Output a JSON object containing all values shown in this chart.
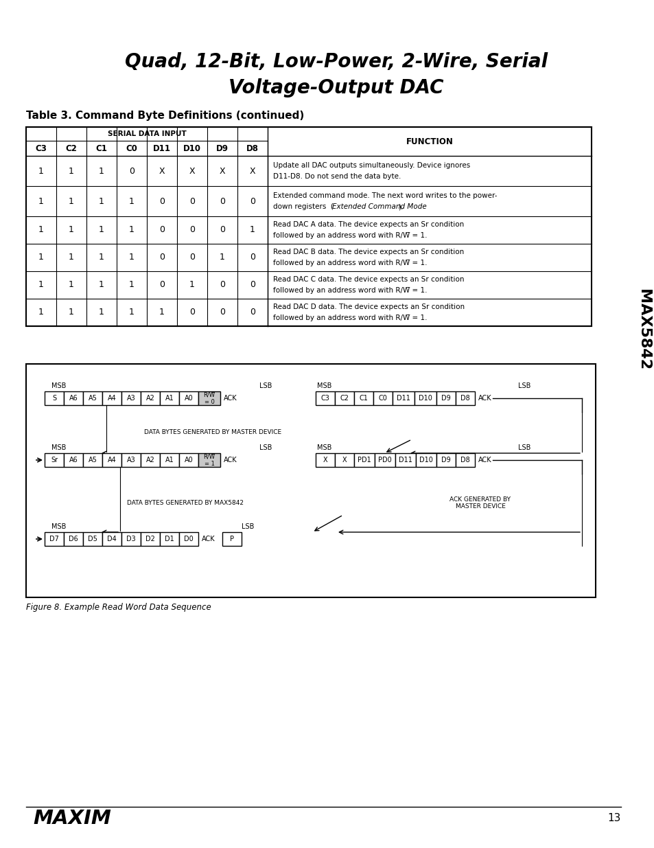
{
  "title_line1": "Quad, 12-Bit, Low-Power, 2-Wire, Serial",
  "title_line2": "Voltage-Output DAC",
  "table_title": "Table 3. Command Byte Definitions (continued)",
  "col_headers": [
    "C3",
    "C2",
    "C1",
    "C0",
    "D11",
    "D10",
    "D9",
    "D8",
    "FUNCTION"
  ],
  "serial_data_input_label": "SERIAL DATA INPUT",
  "rows": [
    [
      "1",
      "1",
      "1",
      "0",
      "X",
      "X",
      "X",
      "X",
      "Update all DAC outputs simultaneously. Device ignores\nD11-D8. Do not send the data byte."
    ],
    [
      "1",
      "1",
      "1",
      "1",
      "0",
      "0",
      "0",
      "0",
      "Extended command mode. The next word writes to the power-\ndown registers  (Extended Command Mode)."
    ],
    [
      "1",
      "1",
      "1",
      "1",
      "0",
      "0",
      "0",
      "1",
      "Read DAC A data. The device expects an Sr condition\nfollowed by an address word with R/W̅ = 1."
    ],
    [
      "1",
      "1",
      "1",
      "1",
      "0",
      "0",
      "1",
      "0",
      "Read DAC B data. The device expects an Sr condition\nfollowed by an address word with R/W̅ = 1."
    ],
    [
      "1",
      "1",
      "1",
      "1",
      "0",
      "1",
      "0",
      "0",
      "Read DAC C data. The device expects an Sr condition\nfollowed by an address word with R/W̅ = 1."
    ],
    [
      "1",
      "1",
      "1",
      "1",
      "1",
      "0",
      "0",
      "0",
      "Read DAC D data. The device expects an Sr condition\nfollowed by an address word with R/W̅ = 1."
    ]
  ],
  "figure_caption": "Figure 8. Example Read Word Data Sequence",
  "page_number": "13",
  "bg_color": "#ffffff",
  "sidebar_text": "MAX5842"
}
